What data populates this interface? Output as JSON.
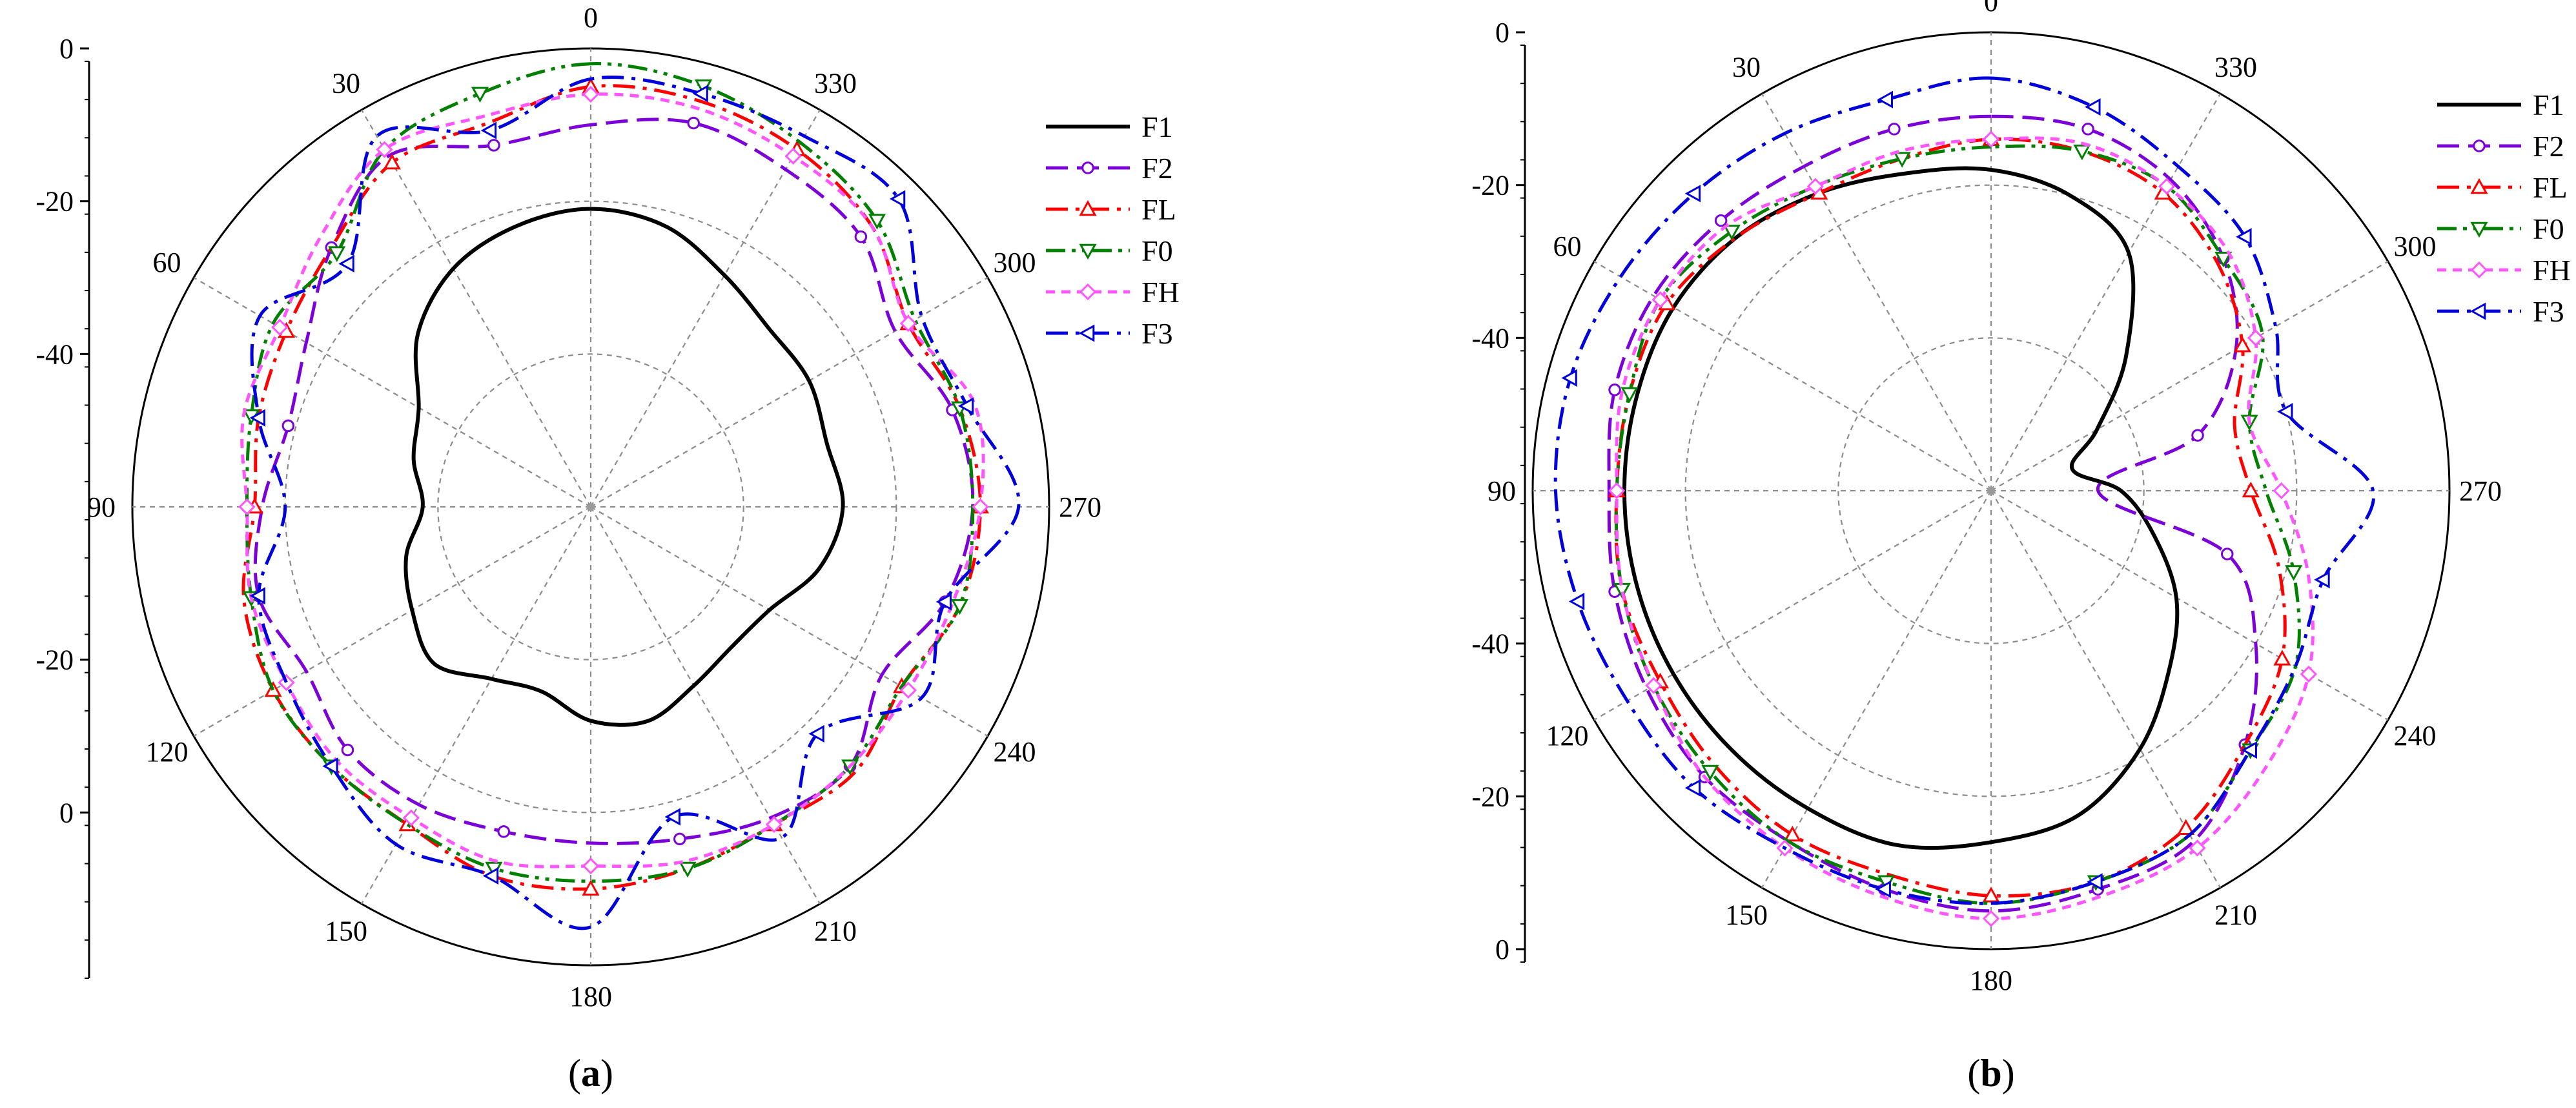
{
  "chart_data": [
    {
      "type": "polar-line",
      "panel_label": "a",
      "caption": "(a)",
      "angle_ticks": [
        "0",
        "30",
        "60",
        "90",
        "120",
        "150",
        "180",
        "210",
        "240",
        "270",
        "300",
        "330"
      ],
      "angle_values": [
        0,
        30,
        60,
        90,
        120,
        150,
        180,
        210,
        240,
        270,
        300,
        330
      ],
      "radial_tick_labels_top": [
        "0",
        "-20",
        "-40"
      ],
      "radial_tick_labels_bottom": [
        "-20",
        "0"
      ],
      "radial_range_db": [
        -60,
        0
      ],
      "grid_circles_db": [
        -40,
        -20,
        0
      ],
      "angle_direction": "counterclockwise",
      "zero_location": "top",
      "series": [
        {
          "name": "F1",
          "color": "#000000",
          "dash": "solid",
          "marker": "none",
          "angles": [
            0,
            15,
            30,
            45,
            60,
            75,
            90,
            105,
            120,
            135,
            150,
            165,
            180,
            195,
            210,
            225,
            240,
            255,
            270,
            285,
            300,
            315,
            330,
            345
          ],
          "values_db": [
            -21,
            -22,
            -24,
            -28,
            -34,
            -36,
            -38,
            -35,
            -33,
            -31,
            -34,
            -35,
            -32,
            -31,
            -33,
            -34,
            -33,
            -29,
            -27,
            -28,
            -27,
            -27,
            -25,
            -22
          ]
        },
        {
          "name": "F2",
          "color": "#7b00d9",
          "dash": "dash",
          "marker": "circle",
          "angles": [
            0,
            15,
            30,
            45,
            60,
            75,
            90,
            105,
            120,
            135,
            150,
            165,
            180,
            195,
            210,
            225,
            240,
            255,
            270,
            285,
            300,
            315,
            330,
            345
          ],
          "values_db": [
            -10,
            -11,
            -7,
            -12,
            -17,
            -19,
            -17,
            -15,
            -17,
            -15,
            -15,
            -16,
            -16,
            -15,
            -13,
            -12,
            -16,
            -12,
            -10,
            -11,
            -14,
            -10,
            -9,
            -8
          ]
        },
        {
          "name": "FL",
          "color": "#ff0000",
          "dash": "dashdot",
          "marker": "triangle-up",
          "angles": [
            0,
            15,
            30,
            45,
            60,
            75,
            90,
            105,
            120,
            135,
            150,
            165,
            180,
            195,
            210,
            225,
            240,
            255,
            270,
            285,
            300,
            315,
            330,
            345
          ],
          "values_db": [
            -5,
            -8,
            -8,
            -12,
            -14,
            -15,
            -16,
            -13,
            -12,
            -12,
            -12,
            -10,
            -10,
            -11,
            -12,
            -11,
            -13,
            -10,
            -9,
            -10,
            -12,
            -8,
            -6,
            -5
          ]
        },
        {
          "name": "F0",
          "color": "#008000",
          "dash": "dashdotdot",
          "marker": "triangle-down",
          "angles": [
            0,
            15,
            30,
            45,
            60,
            75,
            90,
            105,
            120,
            135,
            150,
            165,
            180,
            195,
            210,
            225,
            240,
            255,
            270,
            285,
            300,
            315,
            330,
            345
          ],
          "values_db": [
            -2,
            -4,
            -6,
            -13,
            -12,
            -14,
            -15,
            -14,
            -12,
            -12,
            -12,
            -11,
            -11,
            -11,
            -12,
            -12,
            -13,
            -10,
            -10,
            -10,
            -11,
            -7,
            -5,
            -3
          ]
        },
        {
          "name": "FH",
          "color": "#ff55ff",
          "dash": "shortdash",
          "marker": "diamond",
          "angles": [
            0,
            15,
            30,
            45,
            60,
            75,
            90,
            105,
            120,
            135,
            150,
            165,
            180,
            195,
            210,
            225,
            240,
            255,
            270,
            285,
            300,
            315,
            330,
            345
          ],
          "values_db": [
            -6,
            -7,
            -6,
            -10,
            -13,
            -13,
            -15,
            -14,
            -14,
            -13,
            -13,
            -12,
            -13,
            -12,
            -12,
            -12,
            -12,
            -11,
            -9,
            -8,
            -12,
            -8,
            -7,
            -6
          ]
        },
        {
          "name": "F3",
          "color": "#0000dd",
          "dash": "dashdot",
          "marker": "triangle-left",
          "angles": [
            0,
            15,
            30,
            45,
            60,
            75,
            90,
            105,
            120,
            135,
            150,
            165,
            180,
            195,
            210,
            225,
            240,
            255,
            270,
            285,
            300,
            315,
            330,
            345
          ],
          "values_db": [
            -4,
            -9,
            -4,
            -15,
            -10,
            -15,
            -20,
            -15,
            -14,
            -12,
            -9,
            -10,
            -5,
            -18,
            -10,
            -18,
            -10,
            -12,
            -4,
            -9,
            -10,
            -3,
            -4,
            -4
          ]
        }
      ]
    },
    {
      "type": "polar-line",
      "panel_label": "b",
      "caption": "(b)",
      "angle_ticks": [
        "0",
        "30",
        "60",
        "90",
        "120",
        "150",
        "180",
        "210",
        "240",
        "270",
        "300",
        "330"
      ],
      "angle_values": [
        0,
        30,
        60,
        90,
        120,
        150,
        180,
        210,
        240,
        270,
        300,
        330
      ],
      "radial_tick_labels_top": [
        "0",
        "-20",
        "-40"
      ],
      "radial_tick_labels_bottom": [
        "-40",
        "-20",
        "0"
      ],
      "radial_range_db": [
        -60,
        0
      ],
      "grid_circles_db": [
        -40,
        -20,
        0
      ],
      "angle_direction": "counterclockwise",
      "zero_location": "top",
      "series": [
        {
          "name": "F1",
          "color": "#000000",
          "dash": "solid",
          "marker": "none",
          "angles": [
            0,
            15,
            30,
            45,
            60,
            75,
            90,
            105,
            120,
            135,
            150,
            165,
            180,
            195,
            210,
            225,
            240,
            255,
            270,
            285,
            300,
            315,
            330,
            345
          ],
          "values_db": [
            -18,
            -17,
            -15,
            -13,
            -12,
            -12,
            -12,
            -12,
            -12,
            -12,
            -12,
            -12,
            -14,
            -16,
            -21,
            -27,
            -32,
            -38,
            -43,
            -49,
            -44,
            -35,
            -24,
            -20
          ]
        },
        {
          "name": "F2",
          "color": "#7b00d9",
          "dash": "dash",
          "marker": "circle",
          "angles": [
            0,
            15,
            30,
            45,
            60,
            75,
            90,
            105,
            120,
            135,
            150,
            165,
            180,
            195,
            210,
            225,
            240,
            255,
            270,
            285,
            300,
            315,
            330,
            345
          ],
          "values_db": [
            -11,
            -11,
            -11,
            -10,
            -9,
            -9,
            -10,
            -9,
            -8,
            -7,
            -7,
            -6,
            -5,
            -6,
            -7,
            -13,
            -20,
            -28,
            -46,
            -32,
            -23,
            -17,
            -13,
            -11
          ]
        },
        {
          "name": "FL",
          "color": "#ff0000",
          "dash": "dashdot",
          "marker": "triangle-up",
          "angles": [
            0,
            15,
            30,
            45,
            60,
            75,
            90,
            105,
            120,
            135,
            150,
            165,
            180,
            195,
            210,
            225,
            240,
            255,
            270,
            285,
            300,
            315,
            330,
            345
          ],
          "values_db": [
            -14,
            -15,
            -15,
            -13,
            -11,
            -11,
            -11,
            -10,
            -10,
            -9,
            -8,
            -8,
            -7,
            -7,
            -9,
            -13,
            -16,
            -21,
            -26,
            -27,
            -22,
            -18,
            -15,
            -14
          ]
        },
        {
          "name": "F0",
          "color": "#008000",
          "dash": "dashdotdot",
          "marker": "triangle-down",
          "angles": [
            0,
            15,
            30,
            45,
            60,
            75,
            90,
            105,
            120,
            135,
            150,
            165,
            180,
            195,
            210,
            225,
            240,
            255,
            270,
            285,
            300,
            315,
            330,
            345
          ],
          "values_db": [
            -15,
            -15,
            -14,
            -12,
            -10,
            -11,
            -11,
            -10,
            -9,
            -8,
            -7,
            -7,
            -6,
            -7,
            -8,
            -12,
            -14,
            -19,
            -24,
            -25,
            -19,
            -17,
            -14,
            -14
          ]
        },
        {
          "name": "FH",
          "color": "#ff55ff",
          "dash": "shortdash",
          "marker": "diamond",
          "angles": [
            0,
            15,
            30,
            45,
            60,
            75,
            90,
            105,
            120,
            135,
            150,
            165,
            180,
            195,
            210,
            225,
            240,
            255,
            270,
            285,
            300,
            315,
            330,
            345
          ],
          "values_db": [
            -14,
            -14,
            -14,
            -11,
            -10,
            -10,
            -11,
            -10,
            -9,
            -7,
            -6,
            -5,
            -4,
            -5,
            -6,
            -9,
            -12,
            -17,
            -22,
            -25,
            -20,
            -16,
            -14,
            -13
          ]
        },
        {
          "name": "F3",
          "color": "#0000dd",
          "dash": "dashdot",
          "marker": "triangle-left",
          "angles": [
            0,
            15,
            30,
            45,
            60,
            75,
            90,
            105,
            120,
            135,
            150,
            165,
            180,
            195,
            210,
            225,
            240,
            255,
            270,
            285,
            300,
            315,
            330,
            345
          ],
          "values_db": [
            -6,
            -7,
            -6,
            -5,
            -4,
            -3,
            -3,
            -4,
            -5,
            -5,
            -6,
            -6,
            -6,
            -7,
            -8,
            -12,
            -14,
            -15,
            -10,
            -20,
            -17,
            -13,
            -11,
            -8
          ]
        }
      ]
    }
  ]
}
